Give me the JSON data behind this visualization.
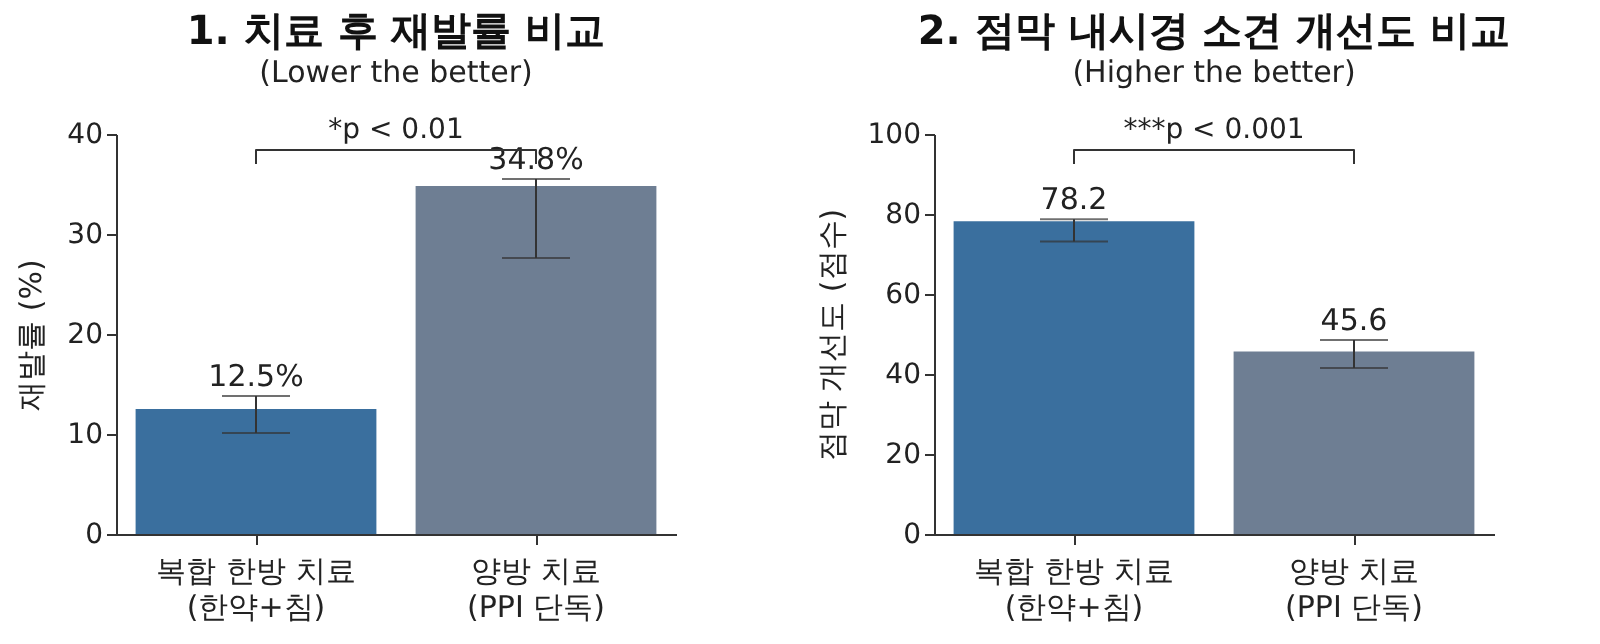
{
  "chart_data": [
    {
      "type": "bar",
      "title": "1. 치료 후 재발률 비교",
      "subtitle": "(Lower the better)",
      "ylabel": "재발률 (%)",
      "categories": [
        "복합 한방 치료\n(한약+침)",
        "양방 치료\n(PPI 단독)"
      ],
      "values": [
        12.5,
        34.8
      ],
      "colors": [
        "#3a6f9e",
        "#6e7e93"
      ],
      "errors": [
        [
          10.1,
          13.8
        ],
        [
          27.6,
          35.5
        ]
      ],
      "value_labels": [
        "12.5%",
        "34.8%"
      ],
      "ylim": [
        0,
        40
      ],
      "yticks": [
        0,
        10,
        20,
        30,
        40
      ],
      "grid": false,
      "annotations": [
        "*p < 0.01"
      ]
    },
    {
      "type": "bar",
      "title": "2. 점막 내시경 소견 개선도 비교",
      "subtitle": "(Higher the better)",
      "ylabel": "점막 개선도 (점수)",
      "categories": [
        "복합 한방 치료\n(한약+침)",
        "양방 치료\n(PPI 단독)"
      ],
      "values": [
        78.2,
        45.6
      ],
      "colors": [
        "#3a6f9e",
        "#6e7e93"
      ],
      "errors": [
        [
          73.1,
          78.7
        ],
        [
          41.5,
          48.5
        ]
      ],
      "value_labels": [
        "78.2",
        "45.6"
      ],
      "ylim": [
        0,
        100
      ],
      "yticks": [
        0,
        20,
        40,
        60,
        80,
        100
      ],
      "grid": false,
      "annotations": [
        "***p < 0.001"
      ]
    }
  ]
}
